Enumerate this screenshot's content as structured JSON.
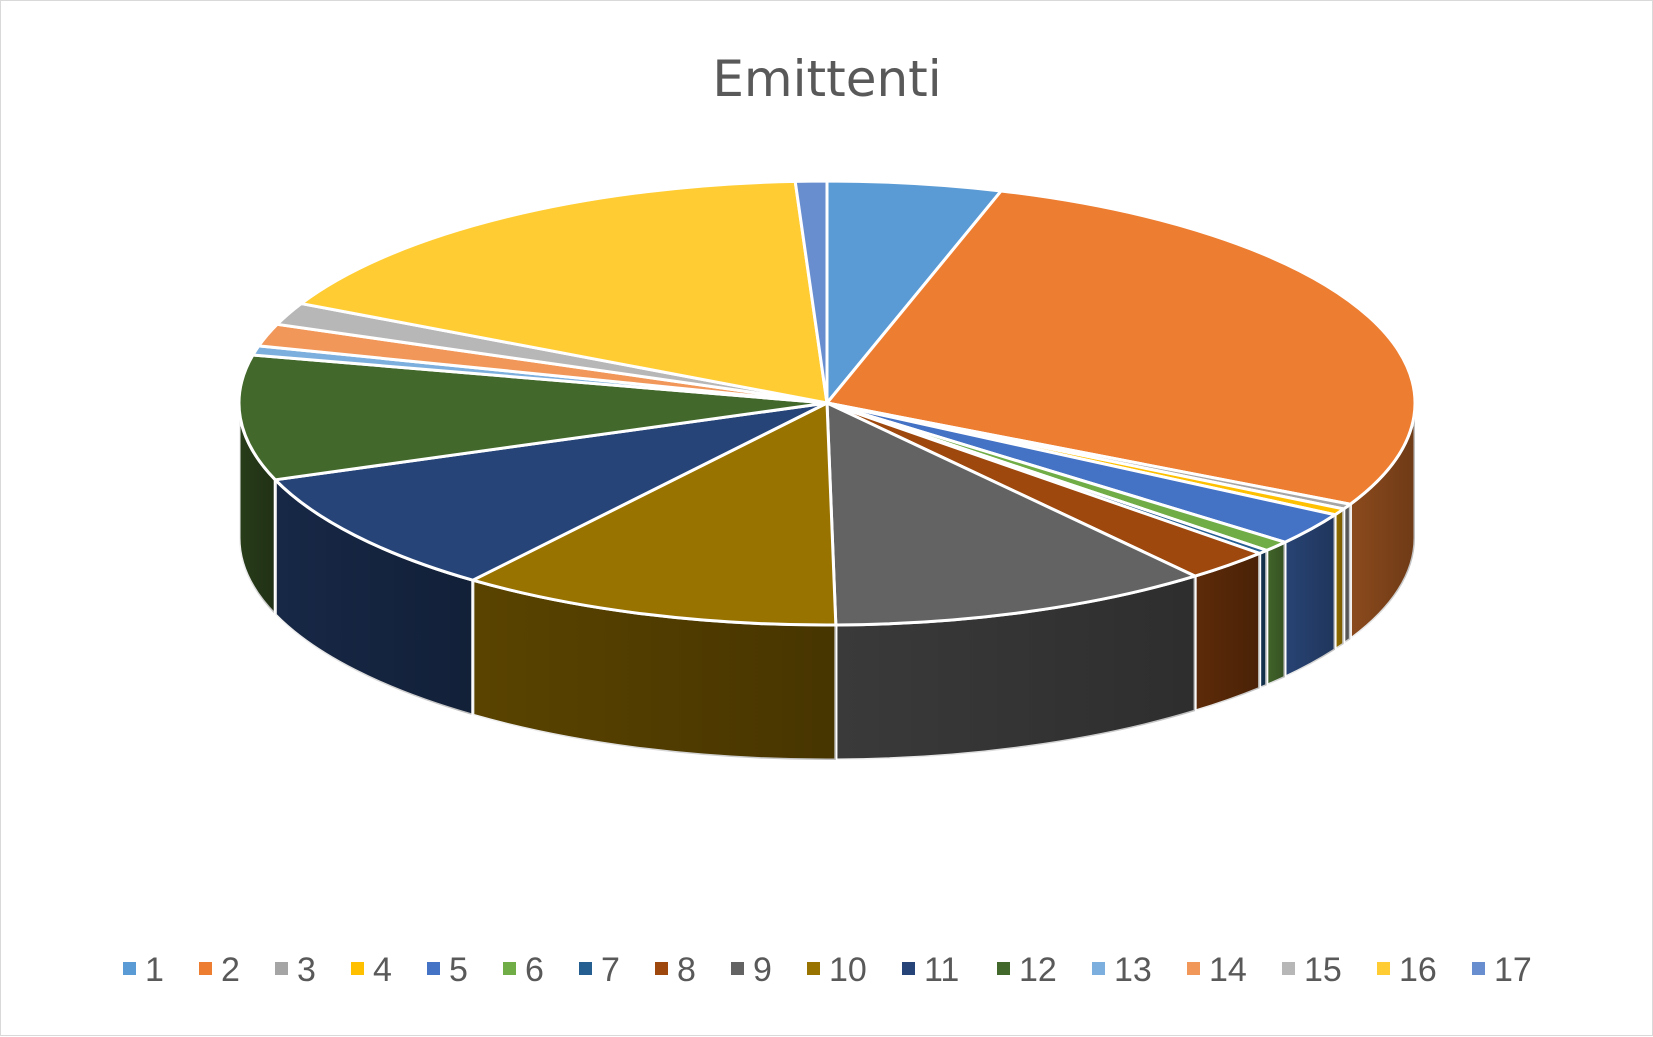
{
  "chart_data": {
    "type": "pie",
    "variant": "3d",
    "title": "Emittenti",
    "legend_position": "bottom",
    "categories": [
      "1",
      "2",
      "3",
      "4",
      "5",
      "6",
      "7",
      "8",
      "9",
      "10",
      "11",
      "12",
      "13",
      "14",
      "15",
      "16",
      "17"
    ],
    "values": [
      5.0,
      29.0,
      0.4,
      0.5,
      2.5,
      0.8,
      0.3,
      2.5,
      11.0,
      11.0,
      9.5,
      9.5,
      0.7,
      1.7,
      1.7,
      17.5,
      0.9
    ],
    "colors": [
      "#5b9bd5",
      "#ed7d31",
      "#a5a5a5",
      "#ffc000",
      "#4472c4",
      "#70ad47",
      "#255e91",
      "#9e480e",
      "#636363",
      "#997300",
      "#264478",
      "#43682b",
      "#7cafdd",
      "#f1975a",
      "#b7b7b7",
      "#ffcd33",
      "#698ed0"
    ]
  }
}
